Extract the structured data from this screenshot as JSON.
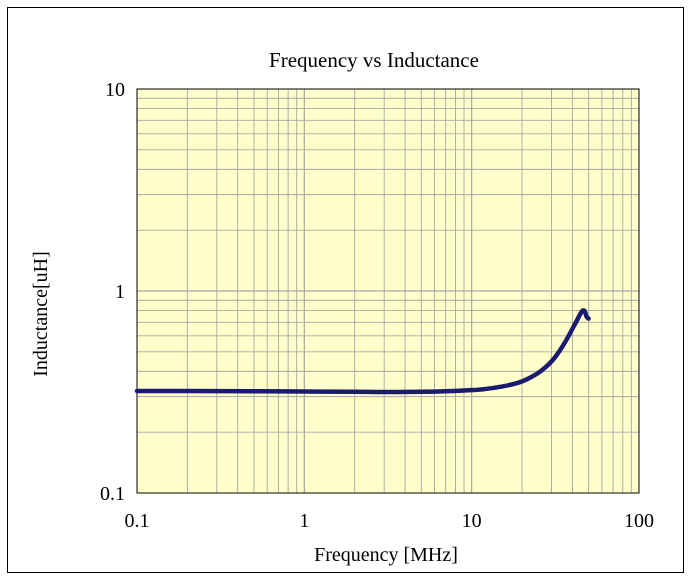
{
  "chart_data": {
    "type": "line",
    "title": "Frequency vs Inductance",
    "xlabel": "Frequency [MHz]",
    "ylabel": "Inductance[uH]",
    "x_scale": "log",
    "y_scale": "log",
    "xlim": [
      0.1,
      100
    ],
    "ylim": [
      0.1,
      10
    ],
    "x_ticks": [
      {
        "value": 0.1,
        "label": "0.1"
      },
      {
        "value": 1,
        "label": "1"
      },
      {
        "value": 10,
        "label": "10"
      },
      {
        "value": 100,
        "label": "100"
      }
    ],
    "y_ticks": [
      {
        "value": 0.1,
        "label": "0.1"
      },
      {
        "value": 1,
        "label": "1"
      },
      {
        "value": 10,
        "label": "10"
      }
    ],
    "grid": true,
    "legend": "none",
    "colors": {
      "plot_background": "#FFFFCC",
      "grid": "#A6A6A6",
      "series": "#1A1A6E",
      "axis": "#000000"
    },
    "series": [
      {
        "x": [
          0.1,
          0.2,
          0.5,
          1,
          2,
          3,
          5,
          7,
          10,
          12,
          15,
          18,
          20,
          22,
          25,
          28,
          30,
          32,
          35,
          38,
          40,
          42,
          44,
          45,
          46,
          47,
          47.5,
          48,
          48.5,
          49,
          50
        ],
        "y": [
          0.32,
          0.32,
          0.319,
          0.318,
          0.317,
          0.316,
          0.317,
          0.319,
          0.323,
          0.327,
          0.336,
          0.347,
          0.357,
          0.37,
          0.393,
          0.424,
          0.448,
          0.478,
          0.534,
          0.6,
          0.65,
          0.7,
          0.755,
          0.78,
          0.8,
          0.8,
          0.79,
          0.77,
          0.75,
          0.74,
          0.73
        ]
      }
    ]
  }
}
